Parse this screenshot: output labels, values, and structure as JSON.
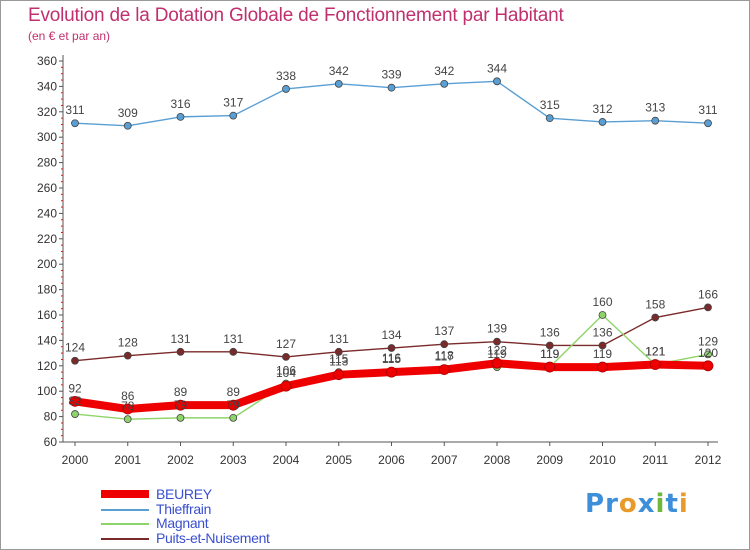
{
  "header": {
    "title": "Evolution de la Dotation Globale de Fonctionnement par Habitant",
    "subtitle": "(en € et par an)"
  },
  "logo": {
    "text": "Proxiti",
    "letters": [
      "P",
      "r",
      "o",
      "x",
      "i",
      "t",
      "i"
    ],
    "colors": [
      "#3c8fd8",
      "#3c8fd8",
      "#e89a2a",
      "#3c8fd8",
      "#6fb83a",
      "#3c8fd8",
      "#e89a2a"
    ]
  },
  "chart_data": {
    "type": "line",
    "x": [
      "2000",
      "2001",
      "2002",
      "2003",
      "2004",
      "2005",
      "2006",
      "2007",
      "2008",
      "2009",
      "2010",
      "2011",
      "2012"
    ],
    "ylim": [
      60,
      360
    ],
    "yticks": [
      60,
      80,
      100,
      120,
      140,
      160,
      180,
      200,
      220,
      240,
      260,
      280,
      300,
      320,
      340,
      360
    ],
    "grid": false,
    "legend_position": "bottom-left",
    "series": [
      {
        "name": "BEUREY",
        "color": "#ee0000",
        "values": [
          92,
          86,
          89,
          89,
          104,
          113,
          115,
          117,
          122,
          119,
          119,
          121,
          120
        ],
        "labels": [
          "92",
          "86",
          "89",
          "89",
          "104",
          "113",
          "115",
          "117",
          "122",
          "119",
          "119",
          "121",
          "120"
        ]
      },
      {
        "name": "Thieffrain",
        "color": "#5a9fd4",
        "values": [
          311,
          309,
          316,
          317,
          338,
          342,
          339,
          342,
          344,
          315,
          312,
          313,
          311
        ],
        "labels": [
          "311",
          "309",
          "316",
          "317",
          "338",
          "342",
          "339",
          "342",
          "344",
          "315",
          "312",
          "313",
          "311"
        ]
      },
      {
        "name": "Magnant",
        "color": "#8fd46a",
        "values": [
          82,
          78,
          79,
          79,
          106,
          115,
          116,
          118,
          119,
          119,
          160,
          121,
          129
        ],
        "labels": [
          "82",
          "78",
          "79",
          "79",
          "106",
          "115",
          "116",
          "118",
          "119",
          "119",
          "160",
          "121",
          "129"
        ]
      },
      {
        "name": "Puits-et-Nuisement",
        "color": "#7a2a2a",
        "values": [
          124,
          128,
          131,
          131,
          127,
          131,
          134,
          137,
          139,
          136,
          136,
          158,
          166
        ],
        "labels": [
          "124",
          "128",
          "131",
          "131",
          "127",
          "131",
          "134",
          "137",
          "139",
          "136",
          "136",
          "158",
          "166"
        ]
      }
    ]
  }
}
